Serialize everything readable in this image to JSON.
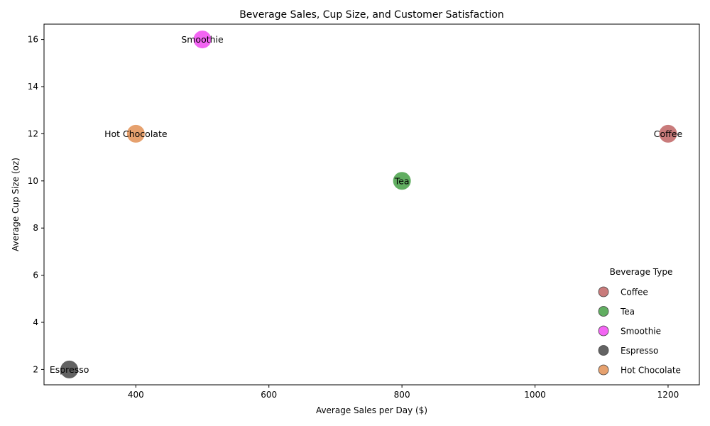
{
  "chart_data": {
    "type": "scatter",
    "title": "Beverage Sales, Cup Size, and Customer Satisfaction",
    "xlabel": "Average Sales per Day ($)",
    "ylabel": "Average Cup Size (oz)",
    "xlim": [
      262,
      1247
    ],
    "ylim": [
      1.35,
      16.65
    ],
    "xticks": [
      400,
      600,
      800,
      1000,
      1200
    ],
    "yticks": [
      2,
      4,
      6,
      8,
      10,
      12,
      14,
      16
    ],
    "grid": false,
    "legend": {
      "title": "Beverage Type",
      "placement": "lower-right"
    },
    "series": [
      {
        "name": "Coffee",
        "x": 1200,
        "y": 12,
        "color": "#bc5a5a"
      },
      {
        "name": "Tea",
        "x": 800,
        "y": 10,
        "color": "#3a9a3a"
      },
      {
        "name": "Smoothie",
        "x": 500,
        "y": 16,
        "color": "#f03ef0"
      },
      {
        "name": "Espresso",
        "x": 300,
        "y": 2,
        "color": "#3c3c3c"
      },
      {
        "name": "Hot Chocolate",
        "x": 400,
        "y": 12,
        "color": "#e08a4a"
      }
    ]
  }
}
